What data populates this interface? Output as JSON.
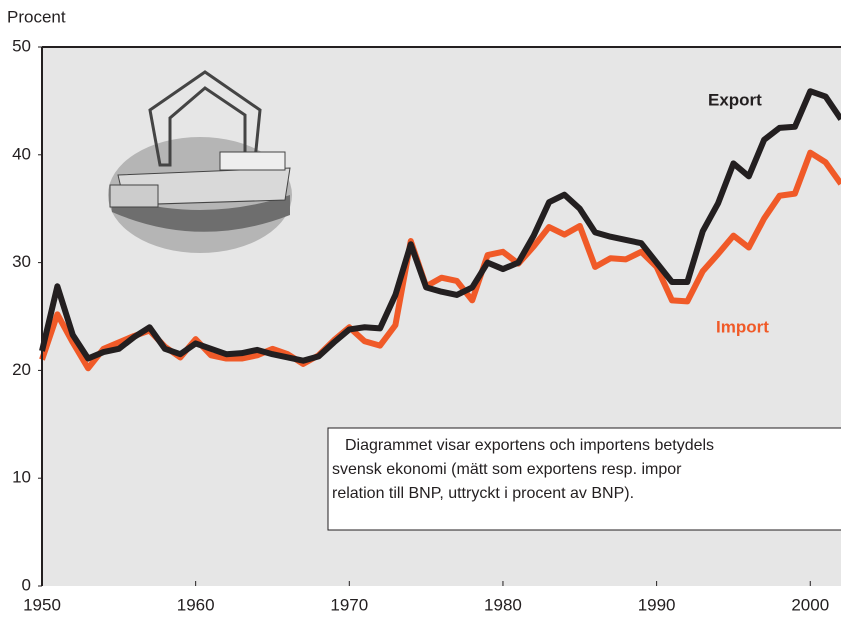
{
  "chart_data": {
    "type": "line",
    "y_label": "Procent",
    "x": [
      1950,
      1951,
      1952,
      1953,
      1954,
      1955,
      1956,
      1957,
      1958,
      1959,
      1960,
      1961,
      1962,
      1963,
      1964,
      1965,
      1966,
      1967,
      1968,
      1969,
      1970,
      1971,
      1972,
      1973,
      1974,
      1975,
      1976,
      1977,
      1978,
      1979,
      1980,
      1981,
      1982,
      1983,
      1984,
      1985,
      1986,
      1987,
      1988,
      1989,
      1990,
      1991,
      1992,
      1993,
      1994,
      1995,
      1996,
      1997,
      1998,
      1999,
      2000,
      2001,
      2002
    ],
    "series": [
      {
        "name": "Import",
        "color": "#f05a28",
        "values": [
          21.0,
          25.2,
          22.6,
          20.2,
          22.0,
          22.6,
          23.2,
          23.7,
          22.2,
          21.2,
          22.9,
          21.4,
          21.1,
          21.1,
          21.4,
          22.0,
          21.5,
          20.6,
          21.4,
          22.8,
          24.0,
          22.7,
          22.3,
          24.2,
          32.0,
          27.8,
          28.6,
          28.3,
          26.5,
          30.7,
          31.0,
          29.9,
          31.5,
          33.3,
          32.6,
          33.4,
          29.6,
          30.4,
          30.3,
          31.0,
          29.6,
          26.5,
          26.4,
          29.2,
          30.8,
          32.5,
          31.4,
          34.1,
          36.2,
          36.4,
          40.2,
          39.3,
          37.3
        ]
      },
      {
        "name": "Export",
        "color": "#231f20",
        "values": [
          21.8,
          27.8,
          23.3,
          21.1,
          21.7,
          22.0,
          23.1,
          24.0,
          22.0,
          21.5,
          22.5,
          22.0,
          21.5,
          21.6,
          21.9,
          21.5,
          21.2,
          20.9,
          21.3,
          22.6,
          23.8,
          24.0,
          23.9,
          27.0,
          31.7,
          27.7,
          27.3,
          27.0,
          27.7,
          30.0,
          29.4,
          30.0,
          32.5,
          35.6,
          36.3,
          35.0,
          32.8,
          32.4,
          32.1,
          31.8,
          30.0,
          28.2,
          28.2,
          32.9,
          35.5,
          39.2,
          38.0,
          41.4,
          42.5,
          42.6,
          45.9,
          45.4,
          43.3
        ]
      }
    ],
    "xlim": [
      1950,
      2002
    ],
    "ylim": [
      0,
      50
    ],
    "xticks": [
      1950,
      1960,
      1970,
      1980,
      1990,
      2000
    ],
    "yticks": [
      0,
      10,
      20,
      30,
      40,
      50
    ],
    "note_lines": [
      "Diagrammet visar exportens och importens betydels",
      "svensk ekonomi (mätt som exportens resp. impor",
      "relation till BNP, uttryckt i procent av BNP)."
    ]
  }
}
